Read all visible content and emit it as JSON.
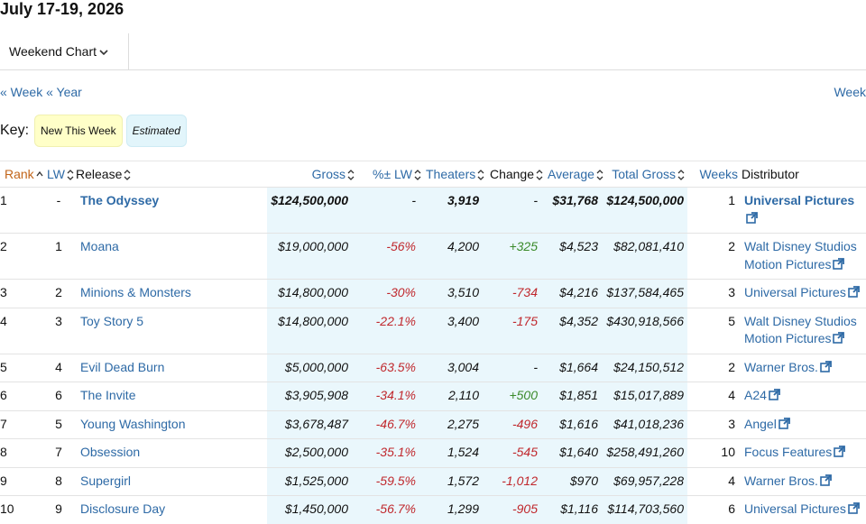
{
  "header": {
    "title": "July 17-19, 2026",
    "tab": "Weekend Chart"
  },
  "nav": {
    "prev_week": "« Week",
    "prev_year": "« Year",
    "next_week": "Week"
  },
  "key": {
    "label": "Key:",
    "new": "New This Week",
    "estimated": "Estimated"
  },
  "table": {
    "columns": [
      "Rank",
      "LW",
      "Release",
      "Gross",
      "%± LW",
      "Theaters",
      "Change",
      "Average",
      "Total Gross",
      "Weeks",
      "Distributor"
    ],
    "rows": [
      [
        "1",
        "-",
        "The Odyssey",
        "$124,500,000",
        "-",
        "3,919",
        "-",
        "$31,768",
        "$124,500,000",
        "1",
        "Universal Pictures"
      ],
      [
        "2",
        "1",
        "Moana",
        "$19,000,000",
        "-56%",
        "4,200",
        "+325",
        "$4,523",
        "$82,081,410",
        "2",
        "Walt Disney Studios Motion Pictures"
      ],
      [
        "3",
        "2",
        "Minions & Monsters",
        "$14,800,000",
        "-30%",
        "3,510",
        "-734",
        "$4,216",
        "$137,584,465",
        "3",
        "Universal Pictures"
      ],
      [
        "4",
        "3",
        "Toy Story 5",
        "$14,800,000",
        "-22.1%",
        "3,400",
        "-175",
        "$4,352",
        "$430,918,566",
        "5",
        "Walt Disney Studios Motion Pictures"
      ],
      [
        "5",
        "4",
        "Evil Dead Burn",
        "$5,000,000",
        "-63.5%",
        "3,004",
        "-",
        "$1,664",
        "$24,150,512",
        "2",
        "Warner Bros."
      ],
      [
        "6",
        "6",
        "The Invite",
        "$3,905,908",
        "-34.1%",
        "2,110",
        "+500",
        "$1,851",
        "$15,017,889",
        "4",
        "A24"
      ],
      [
        "7",
        "5",
        "Young Washington",
        "$3,678,487",
        "-46.7%",
        "2,275",
        "-496",
        "$1,616",
        "$41,018,236",
        "3",
        "Angel"
      ],
      [
        "8",
        "7",
        "Obsession",
        "$2,500,000",
        "-35.1%",
        "1,524",
        "-545",
        "$1,640",
        "$258,491,260",
        "10",
        "Focus Features"
      ],
      [
        "9",
        "8",
        "Supergirl",
        "$1,525,000",
        "-59.5%",
        "1,572",
        "-1,012",
        "$970",
        "$69,957,228",
        "4",
        "Warner Bros."
      ],
      [
        "10",
        "9",
        "Disclosure Day",
        "$1,450,000",
        "-56.7%",
        "1,299",
        "-905",
        "$1,116",
        "$114,703,560",
        "6",
        "Universal Pictures"
      ]
    ]
  }
}
